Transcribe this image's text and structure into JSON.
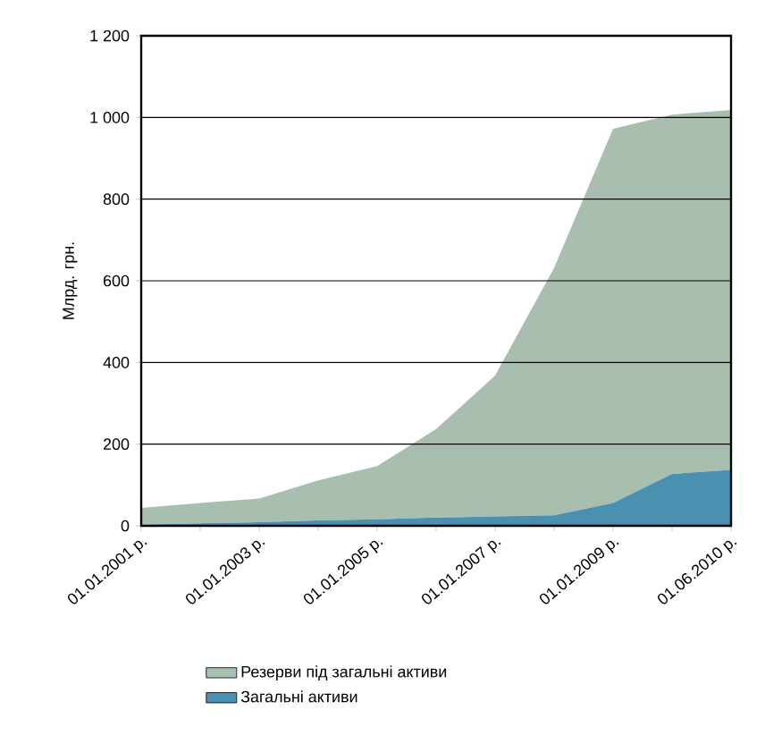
{
  "chart_data": {
    "type": "area",
    "stacked": true,
    "ylabel": "Млрд. грн.",
    "categories": [
      "01.01.2001 р.",
      null,
      "01.01.2003 р.",
      null,
      "01.01.2005 р.",
      null,
      "01.01.2007 р.",
      null,
      "01.01.2009 р.",
      null,
      "01.06.2010 р."
    ],
    "series": [
      {
        "name": "Загальні активи",
        "color": "#4a90b0",
        "values": [
          3,
          6,
          9,
          13,
          16,
          20,
          23,
          26,
          56,
          127,
          137
        ]
      },
      {
        "name": "Резерви під загальні активи",
        "color": "#a8bfb0",
        "values": [
          41,
          50,
          58,
          98,
          130,
          217,
          345,
          606,
          916,
          880,
          881
        ]
      }
    ],
    "ylim": [
      0,
      1200
    ],
    "yticks": [
      0,
      200,
      400,
      600,
      800,
      {
        "value": 1000,
        "label": "1 000"
      },
      {
        "value": 1200,
        "label": "1 200"
      }
    ],
    "grid": "y",
    "legend": "bottom"
  }
}
